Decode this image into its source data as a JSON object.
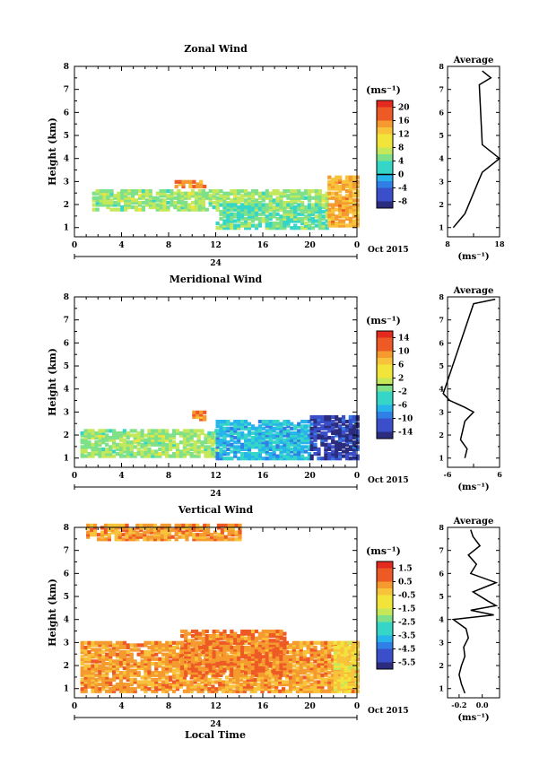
{
  "figure": {
    "date_label": "Oct 2015",
    "day_label": "24",
    "bottom_xlabel": "Local Time",
    "unit_label": "(ms⁻¹)",
    "average_title": "Average",
    "x_tick_labels": [
      "0",
      "4",
      "8",
      "12",
      "16",
      "20",
      "0"
    ],
    "y_label": "Height (km)",
    "y_tick_labels": [
      "1",
      "2",
      "3",
      "4",
      "5",
      "6",
      "7",
      "8"
    ]
  },
  "chart_data": [
    {
      "type": "heatmap",
      "title": "Zonal Wind",
      "xlabel": "",
      "ylabel": "Height (km)",
      "xlim": [
        0,
        24
      ],
      "ylim": [
        0.6,
        8.0
      ],
      "x_ticks": [
        0,
        4,
        8,
        12,
        16,
        20,
        24
      ],
      "y_ticks": [
        1,
        2,
        3,
        4,
        5,
        6,
        7,
        8
      ],
      "colorbar": {
        "unit": "(ms⁻¹)",
        "ticks": [
          20,
          16,
          12,
          8,
          4,
          0,
          -4,
          -8
        ],
        "range": [
          -10,
          22
        ],
        "marked_level": 0
      },
      "approx_fields": [
        {
          "x_range": [
            1.5,
            21.5
          ],
          "y_range": [
            1.7,
            2.6
          ],
          "value": 6
        },
        {
          "x_range": [
            8.5,
            11.0
          ],
          "y_range": [
            2.7,
            3.0
          ],
          "value": 16
        },
        {
          "x_range": [
            12.0,
            21.5
          ],
          "y_range": [
            0.9,
            2.0
          ],
          "value": 4
        },
        {
          "x_range": [
            21.5,
            24.0
          ],
          "y_range": [
            1.0,
            3.2
          ],
          "value": 14
        }
      ],
      "average_profile": {
        "title": "Average",
        "xlabel": "(ms⁻¹)",
        "xlim": [
          0,
          18
        ],
        "x_ticks": [
          0,
          9,
          18
        ],
        "x_tick_labels": [
          "8",
          "18"
        ],
        "height": [
          1.0,
          1.3,
          1.6,
          1.9,
          2.2,
          2.5,
          2.8,
          3.1,
          3.4,
          3.7,
          4.0,
          4.6,
          7.2,
          7.5,
          7.8
        ],
        "value": [
          2.0,
          4.0,
          6.0,
          7.0,
          8.0,
          9.0,
          10.0,
          11.0,
          12.0,
          15.0,
          18.0,
          12.0,
          11.0,
          15.0,
          12.0
        ]
      }
    },
    {
      "type": "heatmap",
      "title": "Meridional Wind",
      "xlabel": "",
      "ylabel": "Height (km)",
      "xlim": [
        0,
        24
      ],
      "ylim": [
        0.6,
        8.0
      ],
      "x_ticks": [
        0,
        4,
        8,
        12,
        16,
        20,
        24
      ],
      "y_ticks": [
        1,
        2,
        3,
        4,
        5,
        6,
        7,
        8
      ],
      "colorbar": {
        "unit": "(ms⁻¹)",
        "ticks": [
          14,
          10,
          6,
          2,
          -2,
          -6,
          -10,
          -14
        ],
        "range": [
          -16,
          16
        ],
        "marked_level": 0
      },
      "approx_fields": [
        {
          "x_range": [
            0.5,
            12.0
          ],
          "y_range": [
            1.0,
            2.2
          ],
          "value": 0
        },
        {
          "x_range": [
            10.0,
            11.0
          ],
          "y_range": [
            2.6,
            3.0
          ],
          "value": 10
        },
        {
          "x_range": [
            12.0,
            20.0
          ],
          "y_range": [
            0.9,
            2.6
          ],
          "value": -6
        },
        {
          "x_range": [
            20.0,
            24.0
          ],
          "y_range": [
            0.9,
            2.8
          ],
          "value": -13
        }
      ],
      "average_profile": {
        "title": "Average",
        "xlabel": "(ms⁻¹)",
        "xlim": [
          -6,
          6
        ],
        "x_ticks": [
          -6,
          0,
          6
        ],
        "x_tick_labels": [
          "-6",
          "6"
        ],
        "height": [
          1.0,
          1.4,
          1.8,
          2.2,
          2.6,
          3.0,
          3.2,
          3.5,
          3.8,
          7.7,
          7.9
        ],
        "value": [
          -2.0,
          -1.5,
          -3.0,
          -2.5,
          -2.0,
          0.0,
          -2.0,
          -5.5,
          -7.0,
          0.0,
          5.0
        ]
      }
    },
    {
      "type": "heatmap",
      "title": "Vertical Wind",
      "xlabel": "Local Time",
      "ylabel": "Height (km)",
      "xlim": [
        0,
        24
      ],
      "ylim": [
        0.6,
        8.0
      ],
      "x_ticks": [
        0,
        4,
        8,
        12,
        16,
        20,
        24
      ],
      "y_ticks": [
        1,
        2,
        3,
        4,
        5,
        6,
        7,
        8
      ],
      "colorbar": {
        "unit": "(ms⁻¹)",
        "ticks": [
          1.5,
          0.5,
          -0.5,
          -1.5,
          -2.5,
          -3.5,
          -4.5,
          -5.5
        ],
        "tick_labels": [
          "1.5",
          "0.5",
          "-0.5",
          "-1.5",
          "-2.5",
          "-3.5",
          "-4.5",
          "-5.5"
        ],
        "range": [
          -6,
          2
        ]
      },
      "approx_fields": [
        {
          "x_range": [
            0.5,
            24.0
          ],
          "y_range": [
            0.8,
            3.0
          ],
          "value": 0.2
        },
        {
          "x_range": [
            9.0,
            18.0
          ],
          "y_range": [
            1.5,
            3.5
          ],
          "value": 0.6
        },
        {
          "x_range": [
            22.0,
            24.0
          ],
          "y_range": [
            0.8,
            3.0
          ],
          "value": -0.8
        },
        {
          "x_range": [
            1.0,
            14.0
          ],
          "y_range": [
            7.4,
            8.0
          ],
          "value": 0.2
        }
      ],
      "average_profile": {
        "title": "Average",
        "xlabel": "(ms⁻¹)",
        "xlim": [
          -0.3,
          0.15
        ],
        "x_ticks": [
          -0.2,
          0.0
        ],
        "x_tick_labels": [
          "-0.2",
          "0.0"
        ],
        "height": [
          0.8,
          1.2,
          1.6,
          2.0,
          2.4,
          2.8,
          3.2,
          3.6,
          4.0,
          4.2,
          4.4,
          4.6,
          4.8,
          5.2,
          5.6,
          6.0,
          6.4,
          6.8,
          7.2,
          7.6,
          7.9
        ],
        "value": [
          -0.15,
          -0.18,
          -0.2,
          -0.18,
          -0.15,
          -0.16,
          -0.12,
          -0.14,
          -0.25,
          0.1,
          -0.1,
          0.12,
          0.05,
          -0.08,
          0.12,
          -0.1,
          -0.05,
          -0.12,
          -0.02,
          -0.08,
          -0.1
        ]
      }
    }
  ]
}
